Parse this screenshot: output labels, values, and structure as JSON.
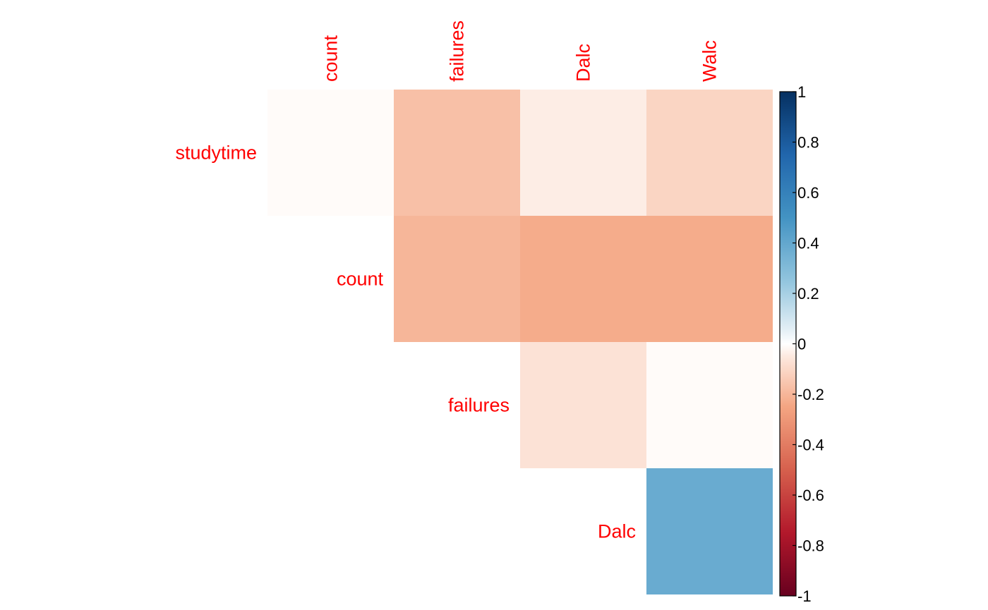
{
  "chart_data": {
    "type": "heatmap",
    "layout": "upper-triangle",
    "rows": [
      "studytime",
      "count",
      "failures",
      "Dalc"
    ],
    "columns": [
      "count",
      "failures",
      "Dalc",
      "Walc"
    ],
    "cells": [
      {
        "row": "studytime",
        "col": "count",
        "value": -0.01
      },
      {
        "row": "studytime",
        "col": "failures",
        "value": -0.17
      },
      {
        "row": "studytime",
        "col": "Dalc",
        "value": -0.04
      },
      {
        "row": "studytime",
        "col": "Walc",
        "value": -0.11
      },
      {
        "row": "count",
        "col": "failures",
        "value": -0.2
      },
      {
        "row": "count",
        "col": "Dalc",
        "value": -0.23
      },
      {
        "row": "count",
        "col": "Walc",
        "value": -0.23
      },
      {
        "row": "failures",
        "col": "Dalc",
        "value": -0.07
      },
      {
        "row": "failures",
        "col": "Walc",
        "value": -0.01
      },
      {
        "row": "Dalc",
        "col": "Walc",
        "value": 0.38
      }
    ],
    "color_scale": {
      "min": -1,
      "max": 1,
      "ticks": [
        "1",
        "0.8",
        "0.6",
        "0.4",
        "0.2",
        "0",
        "-0.2",
        "-0.4",
        "-0.6",
        "-0.8",
        "-1"
      ],
      "stops": [
        {
          "value": -1.0,
          "color": "#67001f"
        },
        {
          "value": -0.75,
          "color": "#b2182b"
        },
        {
          "value": -0.5,
          "color": "#d6604d"
        },
        {
          "value": -0.25,
          "color": "#f4a582"
        },
        {
          "value": -0.05,
          "color": "#fde9df"
        },
        {
          "value": 0.0,
          "color": "#ffffff"
        },
        {
          "value": 0.05,
          "color": "#e6f0f6"
        },
        {
          "value": 0.25,
          "color": "#92c5de"
        },
        {
          "value": 0.5,
          "color": "#4393c3"
        },
        {
          "value": 0.75,
          "color": "#2166ac"
        },
        {
          "value": 1.0,
          "color": "#053061"
        }
      ]
    },
    "label_color": "#ff0000",
    "legend_position": "right"
  }
}
